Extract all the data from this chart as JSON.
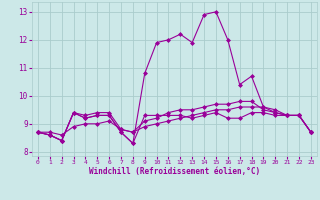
{
  "x": [
    0,
    1,
    2,
    3,
    4,
    5,
    6,
    7,
    8,
    9,
    10,
    11,
    12,
    13,
    14,
    15,
    16,
    17,
    18,
    19,
    20,
    21,
    22,
    23
  ],
  "series": [
    [
      8.7,
      8.6,
      8.4,
      9.4,
      9.2,
      9.3,
      9.3,
      8.7,
      8.3,
      9.3,
      9.3,
      9.3,
      9.3,
      9.2,
      9.3,
      9.4,
      9.2,
      9.2,
      9.4,
      9.4,
      9.3,
      9.3,
      9.3,
      8.7
    ],
    [
      8.7,
      8.6,
      8.4,
      9.4,
      9.3,
      9.4,
      9.4,
      8.8,
      8.7,
      9.1,
      9.2,
      9.4,
      9.5,
      9.5,
      9.6,
      9.7,
      9.7,
      9.8,
      9.8,
      9.5,
      9.4,
      9.3,
      9.3,
      8.7
    ],
    [
      8.7,
      8.7,
      8.6,
      8.9,
      9.0,
      9.0,
      9.1,
      8.8,
      8.7,
      8.9,
      9.0,
      9.1,
      9.2,
      9.3,
      9.4,
      9.5,
      9.5,
      9.6,
      9.6,
      9.6,
      9.5,
      9.3,
      9.3,
      8.7
    ],
    [
      8.7,
      8.6,
      8.4,
      9.4,
      9.2,
      9.3,
      9.3,
      8.7,
      8.3,
      10.8,
      11.9,
      12.0,
      12.2,
      11.9,
      12.9,
      13.0,
      12.0,
      10.4,
      10.7,
      9.6,
      9.4,
      9.3,
      9.3,
      8.7
    ]
  ],
  "line_color": "#990099",
  "bg_color": "#cce8e8",
  "grid_color": "#aacccc",
  "xlabel": "Windchill (Refroidissement éolien,°C)",
  "xlim": [
    -0.5,
    23.5
  ],
  "ylim": [
    7.85,
    13.35
  ],
  "yticks": [
    8,
    9,
    10,
    11,
    12,
    13
  ],
  "xticks": [
    0,
    1,
    2,
    3,
    4,
    5,
    6,
    7,
    8,
    9,
    10,
    11,
    12,
    13,
    14,
    15,
    16,
    17,
    18,
    19,
    20,
    21,
    22,
    23
  ]
}
